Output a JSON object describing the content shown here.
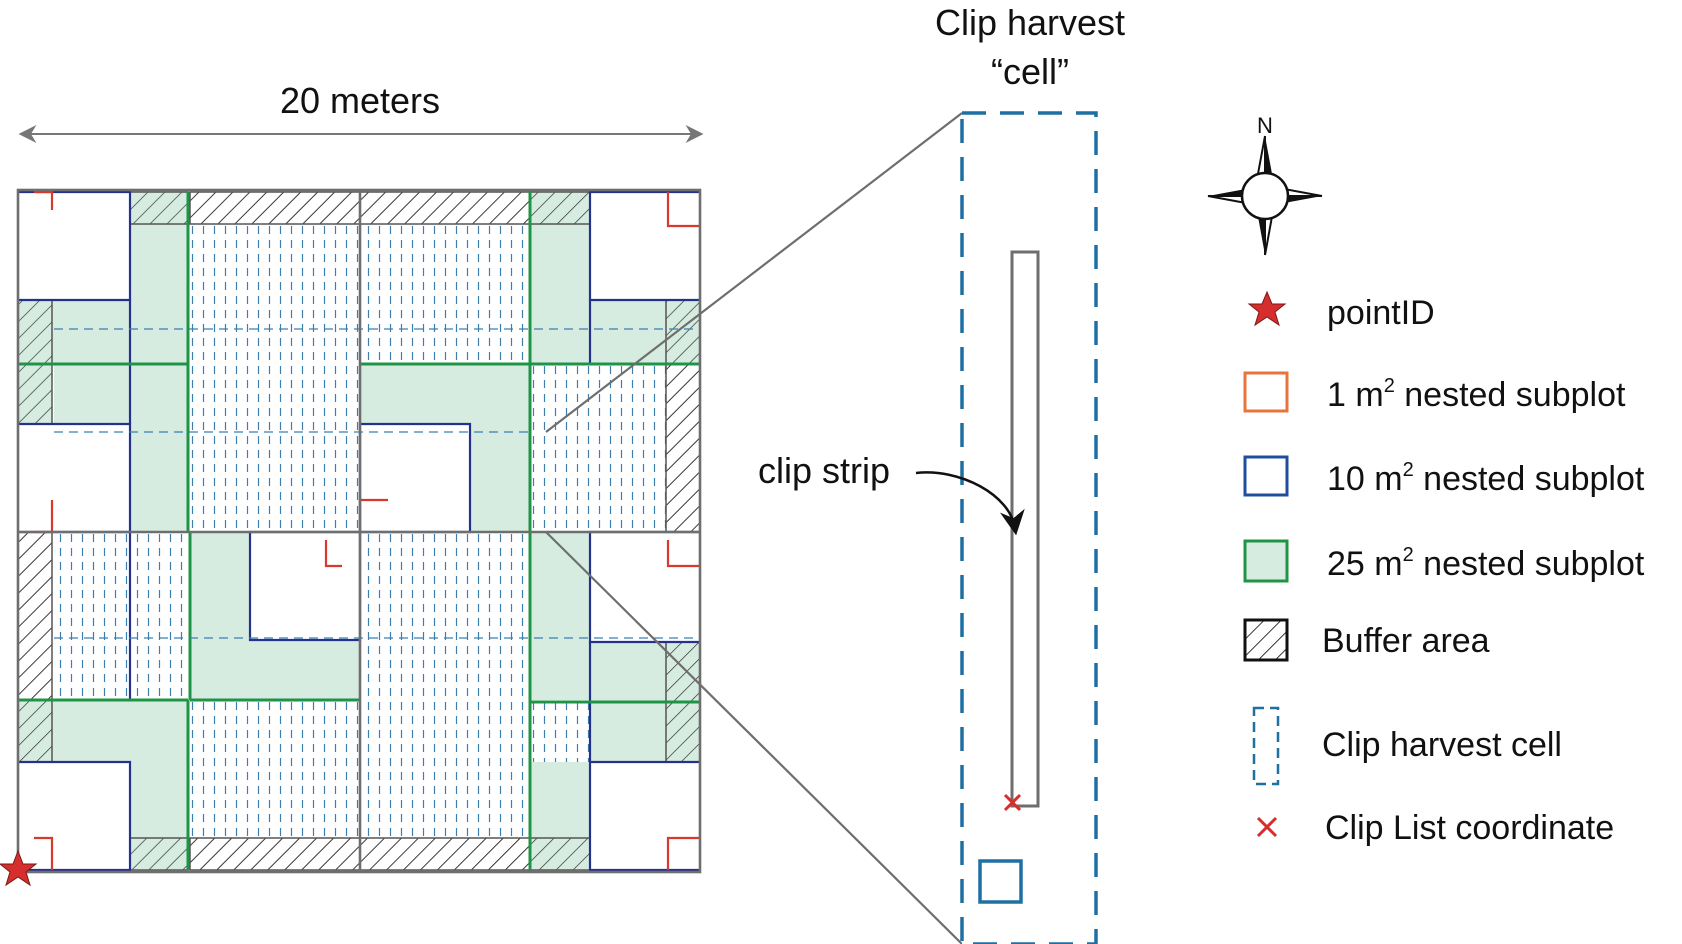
{
  "width_label": "20 meters",
  "cell_title": [
    "Clip harvest",
    "“cell”"
  ],
  "clip_strip_label": "clip strip",
  "compass": {
    "north": "N"
  },
  "legend": [
    {
      "key": "point_id",
      "icon": "red-star",
      "text": "pointID"
    },
    {
      "key": "subplot_1",
      "icon": "orange-square",
      "text": "1 m",
      "sup": "2",
      "rest": " nested subplot"
    },
    {
      "key": "subplot_10",
      "icon": "blue-square",
      "text": "10 m",
      "sup": "2",
      "rest": " nested subplot"
    },
    {
      "key": "subplot_25",
      "icon": "green-filled-square",
      "text": "25 m",
      "sup": "2",
      "rest": " nested subplot"
    },
    {
      "key": "buffer",
      "icon": "hatched-square",
      "text": "Buffer area"
    },
    {
      "key": "cell",
      "icon": "dashed-cell",
      "text": "Clip harvest cell"
    },
    {
      "key": "coordinate",
      "icon": "red-x",
      "text": "Clip List coordinate"
    }
  ],
  "colors": {
    "outline": "#6e6e6e",
    "subplot_1": "#d7392b",
    "subplot_1_legend": "#e8743b",
    "subplot_10": "#24318d",
    "subplot_25": "#1f9447",
    "subplot_25_fill": "#d7ece0",
    "cell_dash": "#1f6fa3",
    "grid_dash": "#3a7fb0",
    "accent_red": "#d62d2d",
    "text": "#111111"
  }
}
